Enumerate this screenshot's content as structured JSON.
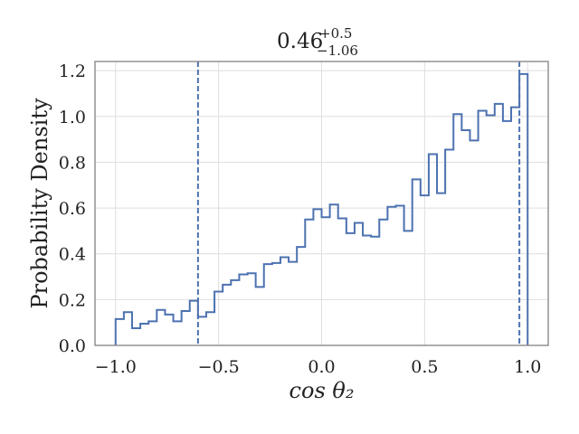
{
  "chart_data": {
    "type": "histogram",
    "title": {
      "value": "0.46",
      "upper": "+0.5",
      "lower": "−1.06"
    },
    "xlabel": "cos θ₂",
    "ylabel": "Probability Density",
    "xlim": [
      -1.1,
      1.1
    ],
    "ylim": [
      0,
      1.24
    ],
    "xticks": [
      -1.0,
      -0.5,
      0.0,
      0.5,
      1.0
    ],
    "xtick_labels": [
      "−1.0",
      "−0.5",
      "0.0",
      "0.5",
      "1.0"
    ],
    "yticks": [
      0.0,
      0.2,
      0.4,
      0.6,
      0.8,
      1.0,
      1.2
    ],
    "ytick_labels": [
      "0.0",
      "0.2",
      "0.4",
      "0.6",
      "0.8",
      "1.0",
      "1.2"
    ],
    "grid": true,
    "color": "#4c72b0",
    "bin_edges": [
      -1.0,
      -0.96,
      -0.92,
      -0.88,
      -0.84,
      -0.8,
      -0.76,
      -0.72,
      -0.68,
      -0.64,
      -0.6,
      -0.56,
      -0.52,
      -0.48,
      -0.44,
      -0.4,
      -0.36,
      -0.32,
      -0.28,
      -0.24,
      -0.2,
      -0.16,
      -0.12,
      -0.08,
      -0.04,
      0.0,
      0.04,
      0.08,
      0.12,
      0.16,
      0.2,
      0.24,
      0.28,
      0.32,
      0.36,
      0.4,
      0.44,
      0.48,
      0.52,
      0.56,
      0.6,
      0.64,
      0.68,
      0.72,
      0.76,
      0.8,
      0.84,
      0.88,
      0.92,
      0.96,
      1.0
    ],
    "densities": [
      0.115,
      0.145,
      0.075,
      0.095,
      0.105,
      0.155,
      0.135,
      0.105,
      0.15,
      0.195,
      0.125,
      0.145,
      0.235,
      0.265,
      0.285,
      0.31,
      0.315,
      0.255,
      0.355,
      0.36,
      0.385,
      0.365,
      0.43,
      0.55,
      0.595,
      0.56,
      0.615,
      0.555,
      0.49,
      0.535,
      0.48,
      0.475,
      0.55,
      0.605,
      0.61,
      0.5,
      0.725,
      0.655,
      0.835,
      0.665,
      0.855,
      1.01,
      0.94,
      0.895,
      1.025,
      1.005,
      1.055,
      0.98,
      1.04,
      1.185
    ],
    "vlines": [
      -0.6,
      0.96
    ]
  }
}
